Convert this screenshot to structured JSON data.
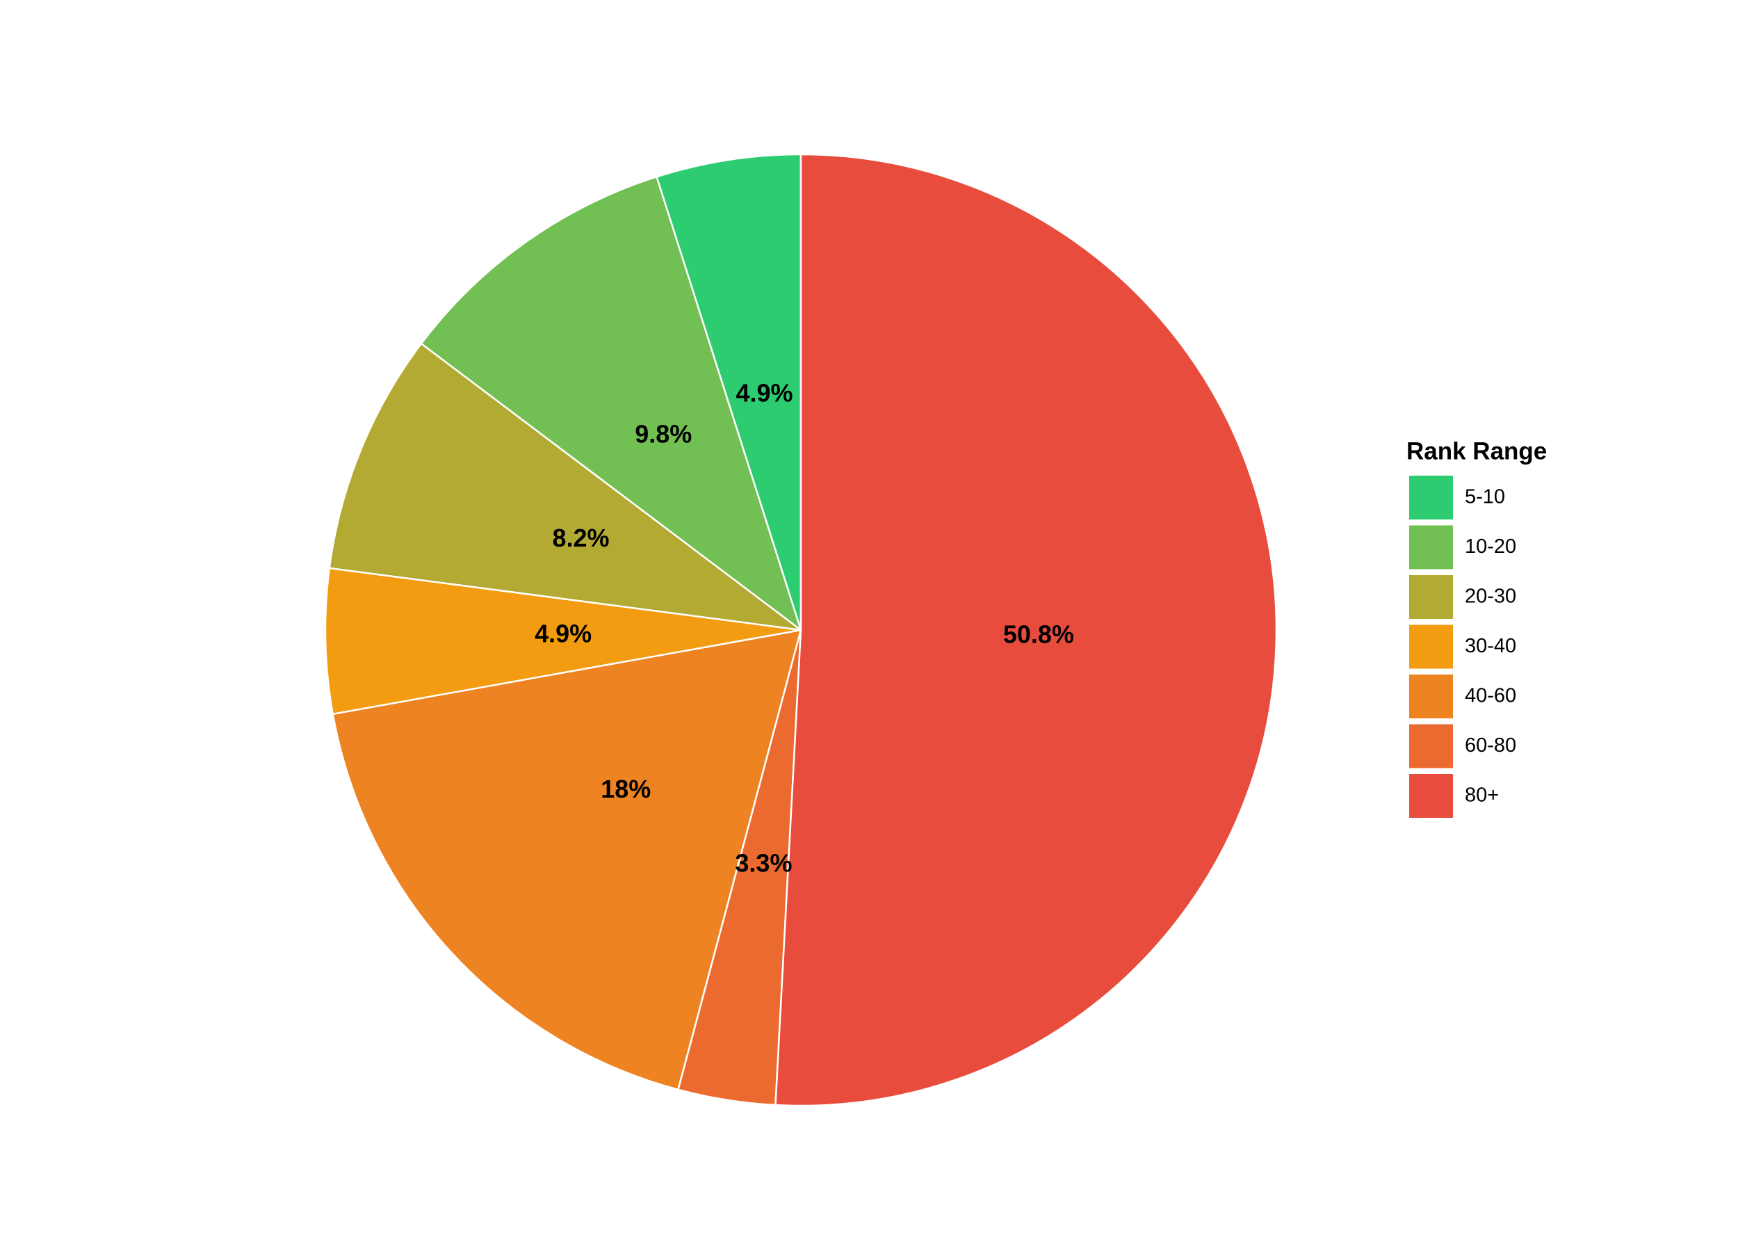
{
  "chart_data": {
    "type": "pie",
    "legend_title": "Rank Range",
    "legend_position": "right",
    "categories": [
      "5-10",
      "10-20",
      "20-30",
      "30-40",
      "40-60",
      "60-80",
      "80+"
    ],
    "values": [
      4.9,
      9.8,
      8.2,
      4.9,
      18,
      3.3,
      50.8
    ],
    "value_labels": [
      "4.9%",
      "9.8%",
      "8.2%",
      "4.9%",
      "18%",
      "3.3%",
      "50.8%"
    ],
    "colors": [
      "#2ecc71",
      "#72bf54",
      "#b2aa33",
      "#f39c12",
      "#ee8322",
      "#ea6a2f",
      "#e74c3c"
    ]
  }
}
